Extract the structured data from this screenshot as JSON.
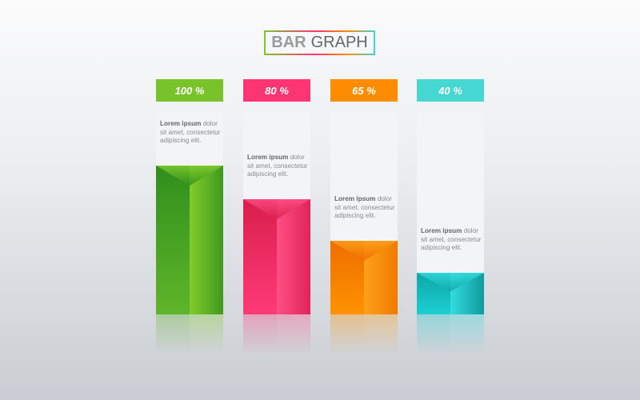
{
  "chart_data": {
    "type": "bar",
    "title_bold": "BAR",
    "title_rest": "GRAPH",
    "categories": [
      "100 %",
      "80 %",
      "65 %",
      "40 %"
    ],
    "values": [
      100,
      80,
      65,
      40
    ],
    "colors": [
      "#79c32a",
      "#ff3573",
      "#ff8c00",
      "#46d7d3"
    ],
    "descriptions": [
      {
        "bold": "Lorem ipsum",
        "rest": " dolor sit amet, consectetur adipiscing elit."
      },
      {
        "bold": "Lorem ipsum",
        "rest": " dolor sit amet, consectetur adipiscing elit."
      },
      {
        "bold": "Lorem ipsum",
        "rest": " dolor sit amet, consectetur adipiscing elit."
      },
      {
        "bold": "Lorem ipsum",
        "rest": " dolor sit amet, consectetur adipiscing elit."
      }
    ]
  }
}
